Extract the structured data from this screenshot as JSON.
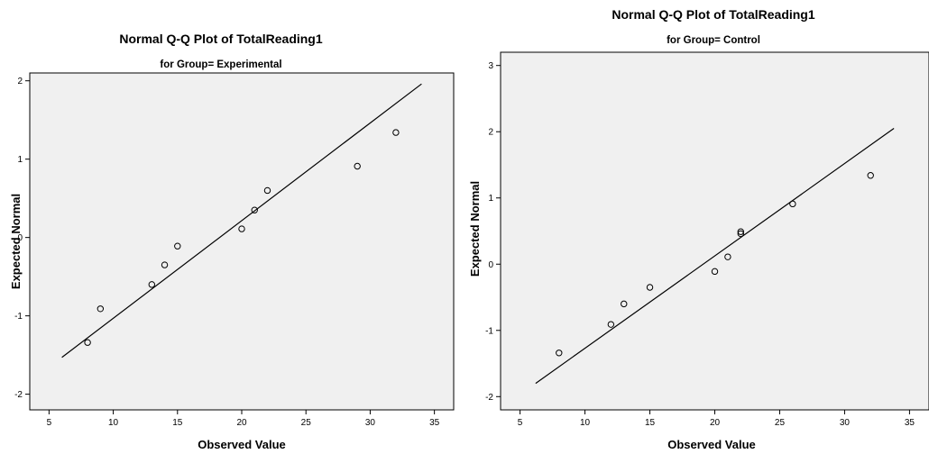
{
  "colors": {
    "plot_background": "#f0f0f0",
    "frame": "#000000",
    "line": "#000000",
    "marker": "#000000"
  },
  "chart_data": [
    {
      "type": "scatter",
      "title": "Normal Q-Q Plot of TotalReading1",
      "subtitle": "for Group= Experimental",
      "xlabel": "Observed Value",
      "ylabel": "Expected Normal",
      "xlim": [
        3.5,
        36.5
      ],
      "ylim": [
        -2.2,
        2.1
      ],
      "xticks": [
        5,
        10,
        15,
        20,
        25,
        30,
        35
      ],
      "yticks": [
        -2,
        -1,
        0,
        1,
        2
      ],
      "grid": false,
      "marker": "open-circle",
      "points": [
        {
          "x": 8,
          "y": -1.34
        },
        {
          "x": 9,
          "y": -0.91
        },
        {
          "x": 13,
          "y": -0.6
        },
        {
          "x": 14,
          "y": -0.35
        },
        {
          "x": 15,
          "y": -0.11
        },
        {
          "x": 20,
          "y": 0.11
        },
        {
          "x": 21,
          "y": 0.35
        },
        {
          "x": 22,
          "y": 0.6
        },
        {
          "x": 29,
          "y": 0.91
        },
        {
          "x": 32,
          "y": 1.34
        }
      ],
      "reference_line": {
        "x1": 6,
        "y1": -1.53,
        "x2": 34,
        "y2": 1.96
      }
    },
    {
      "type": "scatter",
      "title": "Normal Q-Q Plot of TotalReading1",
      "subtitle": "for Group= Control",
      "xlabel": "Observed Value",
      "ylabel": "Expected Normal",
      "xlim": [
        3.5,
        36.5
      ],
      "ylim": [
        -2.2,
        3.2
      ],
      "xticks": [
        5,
        10,
        15,
        20,
        25,
        30,
        35
      ],
      "yticks": [
        -2,
        -1,
        0,
        1,
        2,
        3
      ],
      "grid": false,
      "marker": "open-circle",
      "points": [
        {
          "x": 8,
          "y": -1.34
        },
        {
          "x": 12,
          "y": -0.91
        },
        {
          "x": 13,
          "y": -0.6
        },
        {
          "x": 15,
          "y": -0.35
        },
        {
          "x": 20,
          "y": -0.11
        },
        {
          "x": 21,
          "y": 0.11
        },
        {
          "x": 22,
          "y": 0.46
        },
        {
          "x": 22,
          "y": 0.49
        },
        {
          "x": 26,
          "y": 0.91
        },
        {
          "x": 32,
          "y": 1.34
        }
      ],
      "reference_line": {
        "x1": 6.2,
        "y1": -1.8,
        "x2": 33.8,
        "y2": 2.05
      }
    }
  ]
}
